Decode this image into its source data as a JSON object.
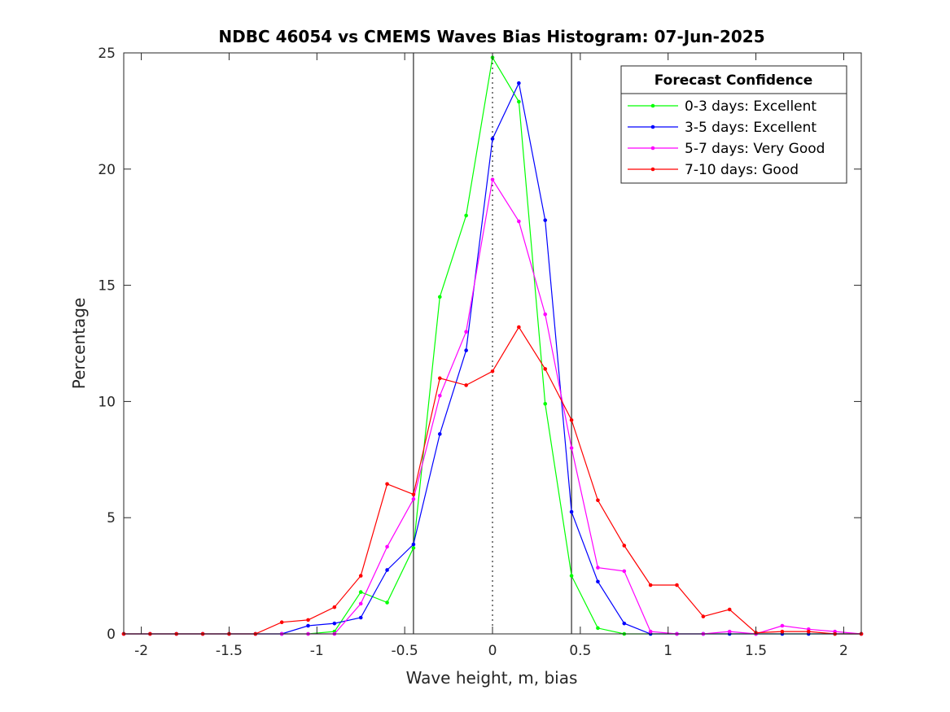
{
  "chart_data": {
    "type": "line",
    "title": "NDBC 46054 vs CMEMS Waves Bias Histogram: 07-Jun-2025",
    "xlabel": "Wave height, m, bias",
    "ylabel": "Percentage",
    "xlim": [
      -2.1,
      2.1
    ],
    "ylim": [
      0,
      25
    ],
    "xticks": [
      -2,
      -1.5,
      -1,
      -0.5,
      0,
      0.5,
      1,
      1.5,
      2
    ],
    "xtick_labels": [
      "-2",
      "-1.5",
      "-1",
      "-0.5",
      "0",
      "0.5",
      "1",
      "1.5",
      "2"
    ],
    "yticks": [
      0,
      5,
      10,
      15,
      20,
      25
    ],
    "ytick_labels": [
      "0",
      "5",
      "10",
      "15",
      "20",
      "25"
    ],
    "grid": false,
    "legend": {
      "title": "Forecast Confidence",
      "placement": "top-right"
    },
    "vertical_lines": [
      {
        "x": -0.45,
        "style": "solid",
        "color": "#000000"
      },
      {
        "x": 0.45,
        "style": "solid",
        "color": "#000000"
      },
      {
        "x": 0,
        "style": "dotted",
        "color": "#000000"
      }
    ],
    "x": [
      -2.1,
      -1.95,
      -1.8,
      -1.65,
      -1.5,
      -1.35,
      -1.2,
      -1.05,
      -0.9,
      -0.75,
      -0.6,
      -0.45,
      -0.3,
      -0.15,
      0,
      0.15,
      0.3,
      0.45,
      0.6,
      0.75,
      0.9,
      1.05,
      1.2,
      1.35,
      1.5,
      1.65,
      1.8,
      1.95,
      2.1
    ],
    "series": [
      {
        "name": "0-3 days: Excellent",
        "color": "#00ff00",
        "values": [
          0,
          0,
          0,
          0,
          0,
          0,
          0,
          0,
          0.1,
          1.8,
          1.35,
          3.7,
          14.5,
          18.0,
          24.8,
          22.9,
          9.9,
          2.5,
          0.25,
          0,
          0,
          0,
          0,
          0,
          0,
          0,
          0,
          0,
          0
        ]
      },
      {
        "name": "3-5 days: Excellent",
        "color": "#0000ff",
        "values": [
          0,
          0,
          0,
          0,
          0,
          0,
          0,
          0.35,
          0.45,
          0.7,
          2.75,
          3.85,
          8.6,
          12.2,
          21.3,
          23.7,
          17.8,
          5.25,
          2.25,
          0.45,
          0,
          0,
          0,
          0,
          0,
          0,
          0,
          0,
          0
        ]
      },
      {
        "name": "5-7 days: Very Good",
        "color": "#ff00ff",
        "values": [
          0,
          0,
          0,
          0,
          0,
          0,
          0,
          0,
          0,
          1.3,
          3.75,
          5.8,
          10.25,
          13.0,
          19.55,
          17.75,
          13.75,
          8.0,
          2.85,
          2.7,
          0.1,
          0,
          0,
          0.1,
          0,
          0.35,
          0.2,
          0.1,
          0
        ]
      },
      {
        "name": "7-10 days: Good",
        "color": "#ff0000",
        "values": [
          0,
          0,
          0,
          0,
          0,
          0,
          0.5,
          0.6,
          1.15,
          2.5,
          6.45,
          6.0,
          11.0,
          10.7,
          11.3,
          13.2,
          11.4,
          9.2,
          5.75,
          3.8,
          2.1,
          2.1,
          0.75,
          1.05,
          0.05,
          0.1,
          0.1,
          0,
          0
        ]
      }
    ]
  }
}
